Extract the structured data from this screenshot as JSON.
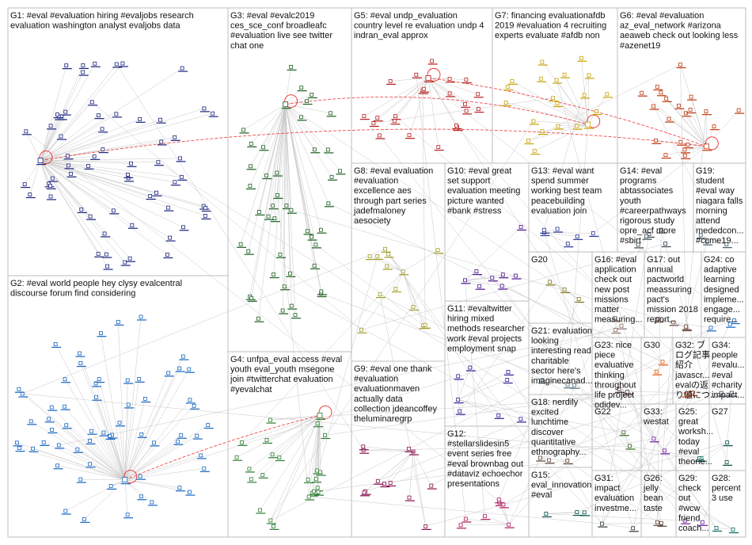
{
  "groups": [
    {
      "id": "G1",
      "lines": [
        "G1: #eval #evaluation hiring #evaljobs research",
        "evaluation washington analyst evaljobs data"
      ],
      "color": "#1a237e"
    },
    {
      "id": "G2",
      "lines": [
        "G2: #eval world people hey clysy evalcentral",
        "discourse forum find considering"
      ],
      "color": "#1565c0"
    },
    {
      "id": "G3",
      "lines": [
        "G3: #eval #evalc2019",
        "ces_sce_conf broadleafc",
        "#evaluation live see twitter",
        "chat one"
      ],
      "color": "#1b5e20"
    },
    {
      "id": "G4",
      "lines": [
        "G4: unfpa_eval access #eval",
        "youth eval_youth msegone",
        "join #twitterchat evaluation",
        "#yevalchat"
      ],
      "color": "#2e7d32"
    },
    {
      "id": "G5",
      "lines": [
        "G5: #eval undp_evaluation",
        "country level re evaluation undp 4",
        "indran_eval approx"
      ],
      "color": "#b71c1c"
    },
    {
      "id": "G6",
      "lines": [
        "G6: #eval #evaluation",
        "az_eval_network #arizona",
        "aeaweb check out looking less",
        "#azenet19"
      ],
      "color": "#bf360c"
    },
    {
      "id": "G7",
      "lines": [
        "G7: financing evaluationafdb",
        "2019 #evaluation 4 recruiting",
        "experts evaluate #afdb non"
      ],
      "color": "#c8a200"
    },
    {
      "id": "G8",
      "lines": [
        "G8: #eval evaluation",
        "#evaluation",
        "excellence aes",
        "through part series",
        "jadefmaloney",
        "aesociety"
      ],
      "color": "#9e9d24"
    },
    {
      "id": "G9",
      "lines": [
        "G9: #eval one thank",
        "#evaluation",
        "evaluationmaven",
        "actually data",
        "collection jdeancoffey",
        "theluminaregrp"
      ],
      "color": "#880e4f"
    },
    {
      "id": "G10",
      "lines": [
        "G10: #eval great",
        "set support",
        "evaluation meeting",
        "picture wanted",
        "#bank #stress"
      ],
      "color": "#4a148c"
    },
    {
      "id": "G11",
      "lines": [
        "G11: #evaltwitter",
        "hiring mixed",
        "methods researcher",
        "work #eval projects",
        "employment snap"
      ],
      "color": "#311b92"
    },
    {
      "id": "G12",
      "lines": [
        "G12:",
        "#stellarslidesin5",
        "event series free",
        "#eval brownbag out",
        "#dataviz echoechor",
        "presentations"
      ],
      "color": "#ad1457"
    },
    {
      "id": "G13",
      "lines": [
        "G13: #eval want",
        "spend summer",
        "working best team",
        "peacebuilding",
        "evaluation join"
      ],
      "color": "#283593"
    },
    {
      "id": "G14",
      "lines": [
        "G14: #eval",
        "programs",
        "abtassociates",
        "youth",
        "#careerpathways",
        "rigorous study",
        "opre_acf more",
        "#sbirt"
      ],
      "color": "#37474f"
    },
    {
      "id": "G15",
      "lines": [
        "G15:",
        "eval_innovation",
        "#eval"
      ],
      "color": "#004d40"
    },
    {
      "id": "G16",
      "lines": [
        "G16: #eval",
        "application",
        "check out",
        "new post",
        "missions",
        "matter",
        "measuring..."
      ],
      "color": "#8d6e63"
    },
    {
      "id": "G17",
      "lines": [
        "G17: out",
        "annual",
        "pactworld",
        "meassuring",
        "pact's",
        "mission 2018",
        "report..."
      ],
      "color": "#6d4c41"
    },
    {
      "id": "G18",
      "lines": [
        "G18: nerdily",
        "excited",
        "lunchtime",
        "discover",
        "quantitative",
        "ethnography..."
      ],
      "color": "#5d4037"
    },
    {
      "id": "G19",
      "lines": [
        "G19:",
        "student",
        "#eval way",
        "niagara falls",
        "morning",
        "attend",
        "mededcon...",
        "#ccme19..."
      ],
      "color": "#455a64"
    },
    {
      "id": "G20",
      "lines": [
        "G20"
      ],
      "color": "#827717"
    },
    {
      "id": "G21",
      "lines": [
        "G21: evaluation",
        "looking",
        "interesting read",
        "charitable",
        "sector here's",
        "imaginecanad..."
      ],
      "color": "#546e7a"
    },
    {
      "id": "G22",
      "lines": [
        "G22"
      ],
      "color": "#33691e"
    },
    {
      "id": "G23",
      "lines": [
        "G23: nice",
        "piece",
        "evaluative",
        "thinking",
        "throughout",
        "life project",
        "odidev..."
      ],
      "color": "#4e342e"
    },
    {
      "id": "G24",
      "lines": [
        "G24: co",
        "adaptive",
        "learning",
        "designed",
        "impleme...",
        "engage...",
        "require..."
      ],
      "color": "#1565c0"
    },
    {
      "id": "G25",
      "lines": [
        "G25:",
        "great",
        "worksh...",
        "today",
        "#eval",
        "theorie..."
      ],
      "color": "#00695c"
    },
    {
      "id": "G26",
      "lines": [
        "G26:",
        "jelly",
        "bean",
        "taste"
      ],
      "color": "#5d4037"
    },
    {
      "id": "G27",
      "lines": [
        "G27"
      ],
      "color": "#004d40"
    },
    {
      "id": "G28",
      "lines": [
        "G28:",
        "percent",
        "3 use"
      ],
      "color": "#00695c"
    },
    {
      "id": "G29",
      "lines": [
        "G29:",
        "check",
        "out",
        "#wcw",
        "friend",
        "coach..."
      ],
      "color": "#6a1b9a"
    },
    {
      "id": "G30",
      "lines": [
        "G30"
      ],
      "color": "#e65100"
    },
    {
      "id": "G31",
      "lines": [
        "G31:",
        "impact",
        "evaluation",
        "investme..."
      ],
      "color": "#263238"
    },
    {
      "id": "G32",
      "lines": [
        "G32: ブ",
        "ログ記事",
        "紹介",
        "javascr...",
        "evalの返",
        "り値につ..."
      ],
      "color": "#bf360c"
    },
    {
      "id": "G33",
      "lines": [
        "G33:",
        "westat"
      ],
      "color": "#6a1b9a"
    },
    {
      "id": "G34",
      "lines": [
        "G34:",
        "people",
        "#evalu...",
        "#eval",
        "#charity",
        "impact..."
      ],
      "color": "#37474f"
    }
  ]
}
